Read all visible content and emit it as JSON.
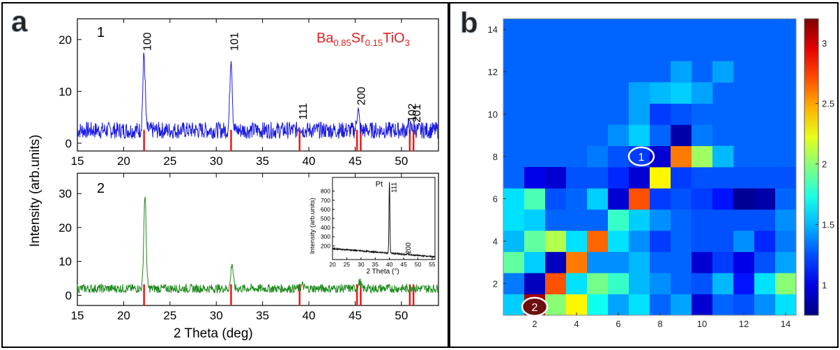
{
  "panel_a": {
    "label": "a",
    "xlabel": "2 Theta (deg)",
    "ylabel": "Intensity (arb.units)",
    "formula": {
      "base": "Ba",
      "sub1": "0.85",
      "mid": "Sr",
      "sub2": "0.15",
      "end": "TiO",
      "sub3": "3"
    },
    "colors": {
      "spectrum1": "#1a1adf",
      "spectrum2": "#1c8a1c",
      "reference": "#e81818",
      "formula": "#e02020"
    }
  },
  "chart_data": [
    {
      "type": "line",
      "sample_label": "1",
      "xlim": [
        15,
        54
      ],
      "ylim": [
        -1.5,
        24
      ],
      "xticks": [
        15,
        20,
        25,
        30,
        35,
        40,
        45,
        50
      ],
      "yticks": [
        0,
        10,
        20
      ],
      "peaks": [
        {
          "x": 22.2,
          "height": 14.5,
          "label": "100"
        },
        {
          "x": 31.6,
          "height": 14.5,
          "label": "101"
        },
        {
          "x": 39.0,
          "height": 1.2,
          "label": "111"
        },
        {
          "x": 45.3,
          "height": 4.0,
          "label": "200"
        },
        {
          "x": 50.8,
          "height": 0.8,
          "label": "102"
        },
        {
          "x": 51.3,
          "height": 0.7,
          "label": "201"
        }
      ],
      "baseline": 2.5,
      "reference_lines": [
        22.2,
        31.6,
        39.0,
        45.2,
        45.6,
        50.9,
        51.3
      ]
    },
    {
      "type": "line",
      "sample_label": "2",
      "xlim": [
        15,
        54
      ],
      "ylim": [
        -3,
        36
      ],
      "xticks": [
        15,
        20,
        25,
        30,
        35,
        40,
        45,
        50
      ],
      "yticks": [
        0,
        10,
        20,
        30
      ],
      "peaks": [
        {
          "x": 22.3,
          "height": 27.5
        },
        {
          "x": 31.7,
          "height": 7.5
        },
        {
          "x": 39.3,
          "height": 1.0
        },
        {
          "x": 45.5,
          "height": 2.0
        },
        {
          "x": 51.2,
          "height": 0.5
        }
      ],
      "baseline": 2.0,
      "reference_lines": [
        22.2,
        31.6,
        39.0,
        45.2,
        45.6,
        50.9,
        51.3
      ]
    },
    {
      "type": "line",
      "xlabel": "2 Theta (°)",
      "ylabel": "Intensity (arb.units)",
      "xlim": [
        20,
        56
      ],
      "ylim": [
        50,
        950
      ],
      "xticks": [
        20,
        25,
        30,
        35,
        40,
        45,
        50,
        55
      ],
      "yticks": [
        200,
        300,
        400,
        500,
        600,
        700,
        800
      ],
      "peaks": [
        {
          "x": 40.0,
          "height": 780,
          "label": "111",
          "material": "Pt"
        },
        {
          "x": 46.5,
          "height": 20,
          "label": "200"
        }
      ],
      "baseline_start": 170,
      "baseline_end": 80
    },
    {
      "type": "heatmap",
      "panel_label": "b",
      "xlim": [
        0.5,
        14.5
      ],
      "ylim": [
        0.5,
        14.5
      ],
      "xticks": [
        2,
        4,
        6,
        8,
        10,
        12,
        14
      ],
      "yticks": [
        2,
        4,
        6,
        8,
        10,
        12,
        14
      ],
      "colorbar": {
        "min": 0.75,
        "max": 3.2,
        "ticks": [
          1,
          1.5,
          2,
          2.5,
          3
        ]
      },
      "background_value": 1.3,
      "cells": [
        [
          1,
          1,
          1.55
        ],
        [
          2,
          1,
          3.1
        ],
        [
          3,
          1,
          2.0
        ],
        [
          4,
          1,
          2.3
        ],
        [
          5,
          1,
          1.7
        ],
        [
          6,
          1,
          1.45
        ],
        [
          7,
          1,
          1.6
        ],
        [
          8,
          1,
          1.3
        ],
        [
          9,
          1,
          1.45
        ],
        [
          10,
          1,
          0.95
        ],
        [
          11,
          1,
          1.3
        ],
        [
          12,
          1,
          1.25
        ],
        [
          13,
          1,
          1.4
        ],
        [
          14,
          1,
          1.6
        ],
        [
          1,
          2,
          1.35
        ],
        [
          2,
          2,
          0.9
        ],
        [
          3,
          2,
          2.7
        ],
        [
          4,
          2,
          1.6
        ],
        [
          5,
          2,
          1.95
        ],
        [
          6,
          2,
          1.8
        ],
        [
          7,
          2,
          1.5
        ],
        [
          8,
          2,
          1.4
        ],
        [
          9,
          2,
          1.3
        ],
        [
          10,
          2,
          1.25
        ],
        [
          11,
          2,
          1.5
        ],
        [
          12,
          2,
          1.1
        ],
        [
          13,
          2,
          1.6
        ],
        [
          14,
          2,
          2.0
        ],
        [
          1,
          3,
          1.9
        ],
        [
          2,
          3,
          1.55
        ],
        [
          3,
          3,
          0.9
        ],
        [
          4,
          3,
          2.6
        ],
        [
          5,
          3,
          1.4
        ],
        [
          6,
          3,
          1.4
        ],
        [
          7,
          3,
          1.5
        ],
        [
          8,
          3,
          1.3
        ],
        [
          9,
          3,
          1.3
        ],
        [
          10,
          3,
          0.95
        ],
        [
          11,
          3,
          1.2
        ],
        [
          12,
          3,
          1.0
        ],
        [
          13,
          3,
          1.25
        ],
        [
          14,
          3,
          1.45
        ],
        [
          1,
          4,
          1.5
        ],
        [
          2,
          4,
          1.9
        ],
        [
          3,
          4,
          2.1
        ],
        [
          4,
          4,
          1.6
        ],
        [
          5,
          4,
          2.65
        ],
        [
          6,
          4,
          1.6
        ],
        [
          7,
          4,
          1.4
        ],
        [
          8,
          4,
          1.2
        ],
        [
          9,
          4,
          1.3
        ],
        [
          10,
          4,
          1.25
        ],
        [
          11,
          4,
          1.25
        ],
        [
          12,
          4,
          1.4
        ],
        [
          13,
          4,
          1.15
        ],
        [
          14,
          4,
          1.35
        ],
        [
          1,
          5,
          1.6
        ],
        [
          2,
          5,
          1.55
        ],
        [
          3,
          5,
          1.3
        ],
        [
          4,
          5,
          1.3
        ],
        [
          5,
          5,
          1.3
        ],
        [
          6,
          5,
          1.8
        ],
        [
          7,
          5,
          1.55
        ],
        [
          8,
          5,
          1.4
        ],
        [
          9,
          5,
          1.3
        ],
        [
          10,
          5,
          1.25
        ],
        [
          11,
          5,
          1.25
        ],
        [
          12,
          5,
          1.25
        ],
        [
          13,
          5,
          1.25
        ],
        [
          14,
          5,
          1.4
        ],
        [
          1,
          6,
          1.6
        ],
        [
          2,
          6,
          1.85
        ],
        [
          3,
          6,
          1.25
        ],
        [
          4,
          6,
          1.3
        ],
        [
          5,
          6,
          1.55
        ],
        [
          6,
          6,
          0.95
        ],
        [
          7,
          6,
          2.7
        ],
        [
          8,
          6,
          1.2
        ],
        [
          9,
          6,
          1.25
        ],
        [
          10,
          6,
          1.2
        ],
        [
          11,
          6,
          1.1
        ],
        [
          12,
          6,
          0.8
        ],
        [
          13,
          6,
          0.85
        ],
        [
          14,
          6,
          1.3
        ],
        [
          1,
          7,
          1.3
        ],
        [
          2,
          7,
          1.0
        ],
        [
          3,
          7,
          0.95
        ],
        [
          4,
          7,
          1.25
        ],
        [
          5,
          7,
          1.25
        ],
        [
          6,
          7,
          1.15
        ],
        [
          7,
          7,
          0.95
        ],
        [
          8,
          7,
          2.3
        ],
        [
          9,
          7,
          1.2
        ],
        [
          10,
          7,
          1.25
        ],
        [
          11,
          7,
          1.25
        ],
        [
          12,
          7,
          1.25
        ],
        [
          13,
          7,
          1.25
        ],
        [
          14,
          7,
          1.25
        ],
        [
          5,
          8,
          1.35
        ],
        [
          6,
          8,
          1.25
        ],
        [
          7,
          8,
          1.2
        ],
        [
          8,
          8,
          0.95
        ],
        [
          9,
          8,
          2.6
        ],
        [
          10,
          8,
          2.05
        ],
        [
          11,
          8,
          1.5
        ],
        [
          6,
          9,
          1.4
        ],
        [
          7,
          9,
          1.55
        ],
        [
          8,
          9,
          1.3
        ],
        [
          9,
          9,
          0.85
        ],
        [
          10,
          9,
          1.35
        ],
        [
          7,
          10,
          1.45
        ],
        [
          8,
          10,
          1.2
        ],
        [
          9,
          10,
          1.25
        ],
        [
          10,
          10,
          1.3
        ],
        [
          7,
          11,
          1.45
        ],
        [
          8,
          11,
          1.5
        ],
        [
          9,
          11,
          1.55
        ],
        [
          10,
          11,
          1.45
        ],
        [
          9,
          12,
          1.45
        ],
        [
          11,
          12,
          1.45
        ]
      ],
      "markers": [
        {
          "id": "1",
          "x": 7.1,
          "y": 8.0
        },
        {
          "id": "2",
          "x": 2.0,
          "y": 0.9
        }
      ]
    }
  ]
}
